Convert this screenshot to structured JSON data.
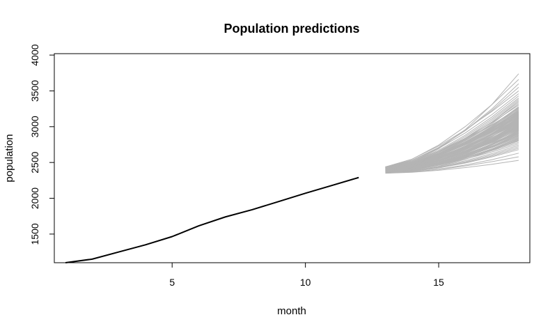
{
  "chart_data": {
    "type": "line",
    "title": "Population predictions",
    "xlabel": "month",
    "ylabel": "population",
    "xlim": [
      0.58,
      18.42
    ],
    "ylim": [
      1100,
      4020
    ],
    "x_ticks": [
      5,
      10,
      15
    ],
    "y_ticks": [
      1500,
      2000,
      2500,
      3000,
      3500,
      4000
    ],
    "grid": false,
    "legend": "none",
    "colors": {
      "observed": "#000000",
      "predictions": "#b4b4b4"
    },
    "observed": {
      "x": [
        1,
        2,
        3,
        4,
        5,
        6,
        7,
        8,
        9,
        10,
        11,
        12
      ],
      "y": [
        1100,
        1150,
        1250,
        1350,
        1465,
        1615,
        1740,
        1840,
        1955,
        2070,
        2180,
        2290
      ]
    },
    "predictions": {
      "x": [
        13,
        14,
        15,
        16,
        17,
        18
      ],
      "start_range": [
        2350,
        2440
      ],
      "end_range": [
        2530,
        3740
      ],
      "n_paths": 100,
      "paths_end_values": [
        2530,
        2580,
        2630,
        2680,
        2700,
        2720,
        2740,
        2760,
        2780,
        2800,
        2810,
        2820,
        2830,
        2840,
        2850,
        2860,
        2870,
        2880,
        2890,
        2900,
        2905,
        2910,
        2920,
        2925,
        2930,
        2940,
        2945,
        2950,
        2955,
        2960,
        2965,
        2970,
        2975,
        2980,
        2985,
        2990,
        2995,
        3000,
        3005,
        3010,
        3015,
        3020,
        3025,
        3030,
        3035,
        3040,
        3045,
        3050,
        3055,
        3060,
        3065,
        3070,
        3075,
        3080,
        3085,
        3090,
        3095,
        3100,
        3105,
        3110,
        3115,
        3120,
        3125,
        3130,
        3135,
        3140,
        3145,
        3150,
        3155,
        3160,
        3165,
        3170,
        3175,
        3180,
        3185,
        3190,
        3195,
        3200,
        3205,
        3210,
        3220,
        3230,
        3240,
        3250,
        3260,
        3270,
        3280,
        3300,
        3320,
        3340,
        3360,
        3380,
        3400,
        3430,
        3460,
        3500,
        3550,
        3600,
        3660,
        3740
      ]
    }
  }
}
